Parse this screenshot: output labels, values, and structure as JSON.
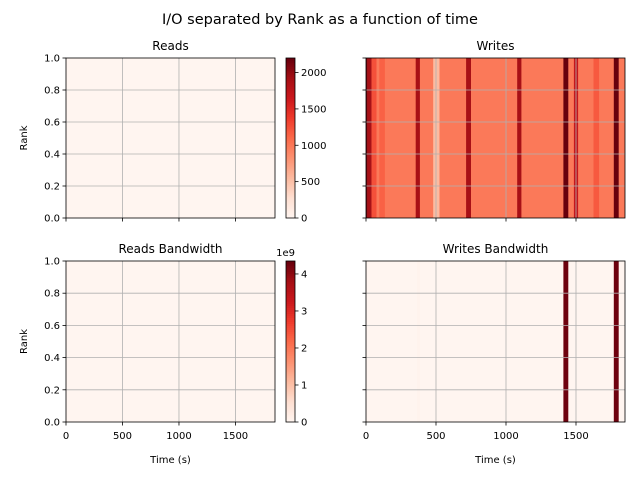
{
  "figure": {
    "suptitle": "I/O separated by Rank as a function of time"
  },
  "colormap": {
    "name": "Reds",
    "stops": [
      "#fff5f0",
      "#fee0d2",
      "#fcbba1",
      "#fc9272",
      "#fb6a4a",
      "#ef3b2c",
      "#cb181d",
      "#a50f15",
      "#67000d"
    ]
  },
  "colorbars": [
    {
      "id": "counts",
      "min": 0,
      "max": 2200,
      "ticks": [
        "0",
        "500",
        "1000",
        "1500",
        "2000"
      ],
      "tick_values": [
        0,
        500,
        1000,
        1500,
        2000
      ],
      "offset_text": ""
    },
    {
      "id": "bandwidth",
      "min": 0,
      "max": 4.35,
      "ticks": [
        "0",
        "1",
        "2",
        "3",
        "4"
      ],
      "tick_values": [
        0,
        1,
        2,
        3,
        4
      ],
      "offset_text": "1e9"
    }
  ],
  "chart_data": [
    {
      "type": "heatmap",
      "title": "Reads",
      "xlabel": "",
      "ylabel": "Rank",
      "xlim": [
        0,
        1850
      ],
      "ylim": [
        0,
        1
      ],
      "x_ticks": [
        0,
        500,
        1000,
        1500
      ],
      "y_ticks": [
        0.0,
        0.2,
        0.4,
        0.6,
        0.8,
        1.0
      ],
      "y_tick_labels": [
        "0.0",
        "0.2",
        "0.4",
        "0.6",
        "0.8",
        "1.0"
      ],
      "x_tick_labels": [],
      "show_y_tick_labels": true,
      "grid": true,
      "colorbar": "counts",
      "background_value": 0,
      "bars": []
    },
    {
      "type": "heatmap",
      "title": "Writes",
      "xlabel": "",
      "ylabel": "",
      "xlim": [
        0,
        1850
      ],
      "ylim": [
        0,
        1
      ],
      "x_ticks": [
        0,
        500,
        1000,
        1500
      ],
      "y_ticks": [
        0.0,
        0.2,
        0.4,
        0.6,
        0.8,
        1.0
      ],
      "x_tick_labels": [],
      "y_tick_labels": [],
      "show_y_tick_labels": false,
      "grid": true,
      "colorbar": "counts",
      "background_value": 1000,
      "bars": [
        {
          "start": 0,
          "end": 10,
          "value": 2150
        },
        {
          "start": 10,
          "end": 40,
          "value": 1900
        },
        {
          "start": 40,
          "end": 75,
          "value": 1250
        },
        {
          "start": 95,
          "end": 135,
          "value": 1150
        },
        {
          "start": 355,
          "end": 385,
          "value": 1900
        },
        {
          "start": 480,
          "end": 525,
          "value": 550
        },
        {
          "start": 715,
          "end": 750,
          "value": 1900
        },
        {
          "start": 1080,
          "end": 1110,
          "value": 1900
        },
        {
          "start": 1410,
          "end": 1445,
          "value": 2200
        },
        {
          "start": 1485,
          "end": 1515,
          "value": 1700
        },
        {
          "start": 1625,
          "end": 1665,
          "value": 1200
        },
        {
          "start": 1770,
          "end": 1805,
          "value": 2200
        }
      ]
    },
    {
      "type": "heatmap",
      "title": "Reads Bandwidth",
      "xlabel": "Time (s)",
      "ylabel": "Rank",
      "xlim": [
        0,
        1850
      ],
      "ylim": [
        0,
        1
      ],
      "x_ticks": [
        0,
        500,
        1000,
        1500
      ],
      "x_tick_labels": [
        "0",
        "500",
        "1000",
        "1500"
      ],
      "y_ticks": [
        0.0,
        0.2,
        0.4,
        0.6,
        0.8,
        1.0
      ],
      "y_tick_labels": [
        "0.0",
        "0.2",
        "0.4",
        "0.6",
        "0.8",
        "1.0"
      ],
      "show_y_tick_labels": true,
      "grid": true,
      "colorbar": "bandwidth",
      "background_value": 0,
      "bars": []
    },
    {
      "type": "heatmap",
      "title": "Writes Bandwidth",
      "xlabel": "Time (s)",
      "ylabel": "",
      "xlim": [
        0,
        1850
      ],
      "ylim": [
        0,
        1
      ],
      "x_ticks": [
        0,
        500,
        1000,
        1500
      ],
      "x_tick_labels": [
        "0",
        "500",
        "1000",
        "1500"
      ],
      "y_ticks": [
        0.0,
        0.2,
        0.4,
        0.6,
        0.8,
        1.0
      ],
      "y_tick_labels": [],
      "show_y_tick_labels": false,
      "grid": true,
      "colorbar": "bandwidth",
      "background_value": 0,
      "bars": [
        {
          "start": 365,
          "end": 385,
          "value": 0.06
        },
        {
          "start": 1410,
          "end": 1445,
          "value": 4.3
        },
        {
          "start": 1770,
          "end": 1805,
          "value": 4.3
        }
      ]
    }
  ]
}
